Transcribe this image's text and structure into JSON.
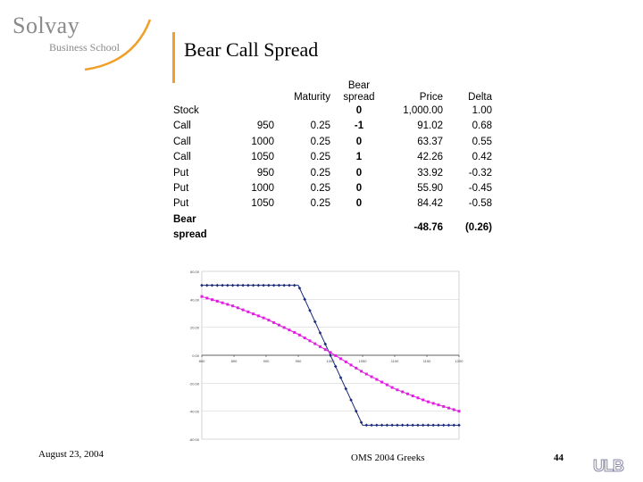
{
  "header": {
    "logo_name": "Solvay",
    "logo_sub": "Business School",
    "title": "Bear Call Spread"
  },
  "table": {
    "headers": [
      "",
      "",
      "Maturity",
      "Bear spread",
      "Price",
      "Delta"
    ],
    "header_bear_line1": "Bear",
    "header_bear_line2": "spread",
    "rows": [
      [
        "Stock",
        "",
        "",
        "0",
        "1,000.00",
        "1.00"
      ],
      [
        "Call",
        "950",
        "0.25",
        "-1",
        "91.02",
        "0.68"
      ],
      [
        "Call",
        "1000",
        "0.25",
        "0",
        "63.37",
        "0.55"
      ],
      [
        "Call",
        "1050",
        "0.25",
        "1",
        "42.26",
        "0.42"
      ],
      [
        "Put",
        "950",
        "0.25",
        "0",
        "33.92",
        "-0.32"
      ],
      [
        "Put",
        "1000",
        "0.25",
        "0",
        "55.90",
        "-0.45"
      ],
      [
        "Put",
        "1050",
        "0.25",
        "0",
        "84.42",
        "-0.58"
      ]
    ],
    "total": {
      "label": "Bear spread",
      "price": "-48.76",
      "delta": "(0.26)"
    }
  },
  "chart_data": {
    "type": "line",
    "title": "",
    "xlabel": "",
    "ylabel": "",
    "xlim": [
      800,
      1200
    ],
    "ylim": [
      -60,
      60
    ],
    "x_tick_labels": [
      "800",
      "850",
      "900",
      "950",
      "1000",
      "1050",
      "1100",
      "1150",
      "1200"
    ],
    "y_tick_labels": [
      "60.00",
      "40.00",
      "20.00",
      "0.00",
      "-20.00",
      "-40.00",
      "-60.00"
    ],
    "grid": true,
    "series": [
      {
        "color": "#1a2a7a",
        "marker": "diamond",
        "x": [
          800,
          950,
          1050,
          1200
        ],
        "y": [
          50,
          50,
          -50,
          -50
        ]
      },
      {
        "color": "#e020e0",
        "marker": "square",
        "x": [
          800,
          850,
          900,
          950,
          1000,
          1050,
          1100,
          1150,
          1200
        ],
        "y": [
          42,
          35,
          26,
          15,
          2,
          -12,
          -24,
          -33,
          -40
        ]
      }
    ]
  },
  "footer": {
    "date": "August 23, 2004",
    "course": "OMS 2004 Greeks",
    "page": "44",
    "logo": "ULB"
  }
}
